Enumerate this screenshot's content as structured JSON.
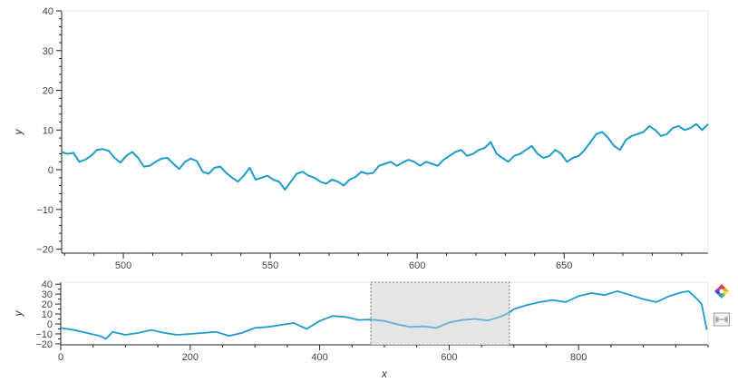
{
  "chart_data": [
    {
      "type": "line",
      "xlabel": "",
      "ylabel": "y",
      "xlim": [
        479,
        699
      ],
      "ylim": [
        -21,
        40
      ],
      "x_ticks": [
        500,
        550,
        600,
        650
      ],
      "y_ticks": [
        -20,
        -10,
        0,
        10,
        20,
        30,
        40
      ],
      "grid": false,
      "series": [
        {
          "color": "#1f9ac9",
          "x": [
            479,
            481,
            483,
            485,
            487,
            489,
            491,
            493,
            495,
            497,
            499,
            501,
            503,
            505,
            507,
            509,
            511,
            513,
            515,
            517,
            519,
            521,
            523,
            525,
            527,
            529,
            531,
            533,
            535,
            537,
            539,
            541,
            543,
            545,
            547,
            549,
            551,
            553,
            555,
            557,
            559,
            561,
            563,
            565,
            567,
            569,
            571,
            573,
            575,
            577,
            579,
            581,
            583,
            585,
            587,
            589,
            591,
            593,
            595,
            597,
            599,
            601,
            603,
            605,
            607,
            609,
            611,
            613,
            615,
            617,
            619,
            621,
            623,
            625,
            627,
            629,
            631,
            633,
            635,
            637,
            639,
            641,
            643,
            645,
            647,
            649,
            651,
            653,
            655,
            657,
            659,
            661,
            663,
            665,
            667,
            669,
            671,
            673,
            675,
            677,
            679,
            681,
            683,
            685,
            687,
            689,
            691,
            693,
            695,
            697,
            699
          ],
          "y": [
            4.5,
            4,
            4.3,
            2,
            2.5,
            3.5,
            5,
            5.2,
            4.8,
            3,
            1.8,
            3.5,
            4.5,
            3,
            0.8,
            1,
            2,
            2.8,
            3,
            1.5,
            0.2,
            2,
            2.8,
            2.2,
            -0.5,
            -1,
            0.5,
            0.8,
            -0.8,
            -2,
            -3,
            -1.5,
            0.5,
            -2.5,
            -2,
            -1.5,
            -2.5,
            -3,
            -5,
            -3,
            -1,
            -0.5,
            -1.5,
            -2,
            -3,
            -3.5,
            -2.5,
            -3,
            -4,
            -2.5,
            -1.8,
            -0.5,
            -1,
            -0.8,
            1,
            1.5,
            2,
            1,
            1.8,
            2.5,
            2,
            1,
            2,
            1.5,
            1,
            2.5,
            3.5,
            4.5,
            5,
            3.5,
            4,
            5,
            5.5,
            7,
            4,
            3,
            2,
            3.5,
            4,
            5,
            6,
            4,
            3,
            3.5,
            5,
            4,
            2,
            3,
            3.5,
            5,
            7,
            9,
            9.5,
            8,
            6,
            5,
            7.5,
            8.5,
            9,
            9.5,
            11,
            10,
            8.5,
            9,
            10.5,
            11,
            10,
            10.5,
            11.5,
            10,
            11.5
          ]
        }
      ]
    },
    {
      "type": "line",
      "xlabel": "x",
      "ylabel": "y",
      "xlim": [
        0,
        1000
      ],
      "ylim": [
        -21,
        42
      ],
      "x_ticks": [
        0,
        200,
        400,
        600,
        800
      ],
      "y_ticks": [
        -20,
        -10,
        0,
        10,
        20,
        30,
        40
      ],
      "grid": false,
      "selection_range": [
        479,
        693
      ],
      "series": [
        {
          "color": "#1f9ac9",
          "x": [
            0,
            20,
            40,
            60,
            70,
            80,
            100,
            120,
            140,
            160,
            180,
            200,
            220,
            240,
            260,
            280,
            300,
            320,
            340,
            360,
            380,
            400,
            420,
            440,
            460,
            479,
            500,
            520,
            540,
            560,
            580,
            600,
            620,
            640,
            660,
            680,
            693,
            700,
            720,
            740,
            760,
            780,
            800,
            820,
            840,
            860,
            880,
            900,
            920,
            940,
            960,
            970,
            980,
            990,
            998
          ],
          "y": [
            -4,
            -6,
            -9,
            -12,
            -15,
            -8,
            -11,
            -9,
            -6,
            -9,
            -11,
            -10,
            -9,
            -8,
            -12,
            -9,
            -4,
            -3,
            -1,
            1,
            -5,
            3,
            8,
            7,
            4,
            4.5,
            3,
            -0.5,
            -3,
            -2.5,
            -4,
            1.5,
            4,
            5,
            3.5,
            7.5,
            11.5,
            15,
            19,
            22,
            24,
            22,
            28,
            31,
            29,
            33,
            29,
            25,
            22,
            28,
            32,
            33,
            27,
            20,
            -6
          ]
        }
      ]
    }
  ],
  "colors": {
    "line": "#1f9ac9",
    "line_selected": "#74b6d4",
    "selection_fill": "#e5e5e5",
    "axis": "#222222"
  },
  "toolbar": {
    "tools": [
      {
        "icon": "bokeh-logo-icon",
        "name": "logo"
      },
      {
        "icon": "range-tool-icon",
        "name": "range-tool"
      }
    ]
  }
}
